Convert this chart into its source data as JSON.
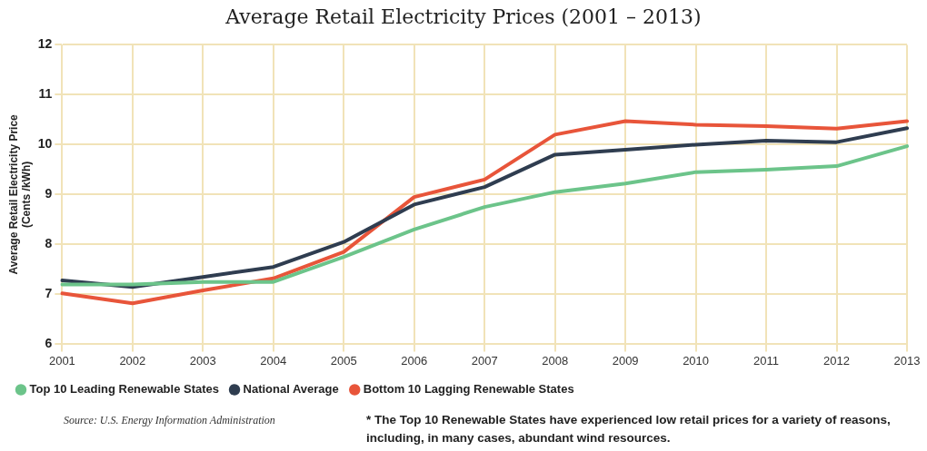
{
  "chart_data": {
    "type": "line",
    "title": "Average Retail Electricity Prices (2001 – 2013)",
    "ylabel": "Average Retail Electricity Price\n(Cents /kWh)",
    "categories": [
      "2001",
      "2002",
      "2003",
      "2004",
      "2005",
      "2006",
      "2007",
      "2008",
      "2009",
      "2010",
      "2011",
      "2012",
      "2013"
    ],
    "series": [
      {
        "name": "Top 10 Leading Renewable States",
        "color": "#6cc48a",
        "values": [
          7.2,
          7.2,
          7.25,
          7.25,
          7.75,
          8.3,
          8.75,
          9.05,
          9.22,
          9.45,
          9.5,
          9.57,
          9.97
        ]
      },
      {
        "name": "National Average",
        "color": "#2f3d50",
        "values": [
          7.28,
          7.15,
          7.35,
          7.55,
          8.05,
          8.8,
          9.15,
          9.8,
          9.9,
          10.0,
          10.08,
          10.05,
          10.33
        ]
      },
      {
        "name": "Bottom 10 Lagging Renewable States",
        "color": "#e8553a",
        "values": [
          7.02,
          6.82,
          7.08,
          7.32,
          7.85,
          8.95,
          9.3,
          10.2,
          10.47,
          10.4,
          10.37,
          10.32,
          10.47
        ]
      }
    ],
    "ylim": [
      6,
      12
    ],
    "yticks": [
      6,
      7,
      8,
      9,
      10,
      11,
      12
    ],
    "grid": true,
    "legend": "bottom",
    "marker": "none",
    "line_style": "solid",
    "annotations": [
      "Source: U.S. Energy Information Administration",
      "* The Top 10 Renewable States have experienced low retail prices for a variety of reasons, including, in many cases, abundant wind resources."
    ]
  }
}
